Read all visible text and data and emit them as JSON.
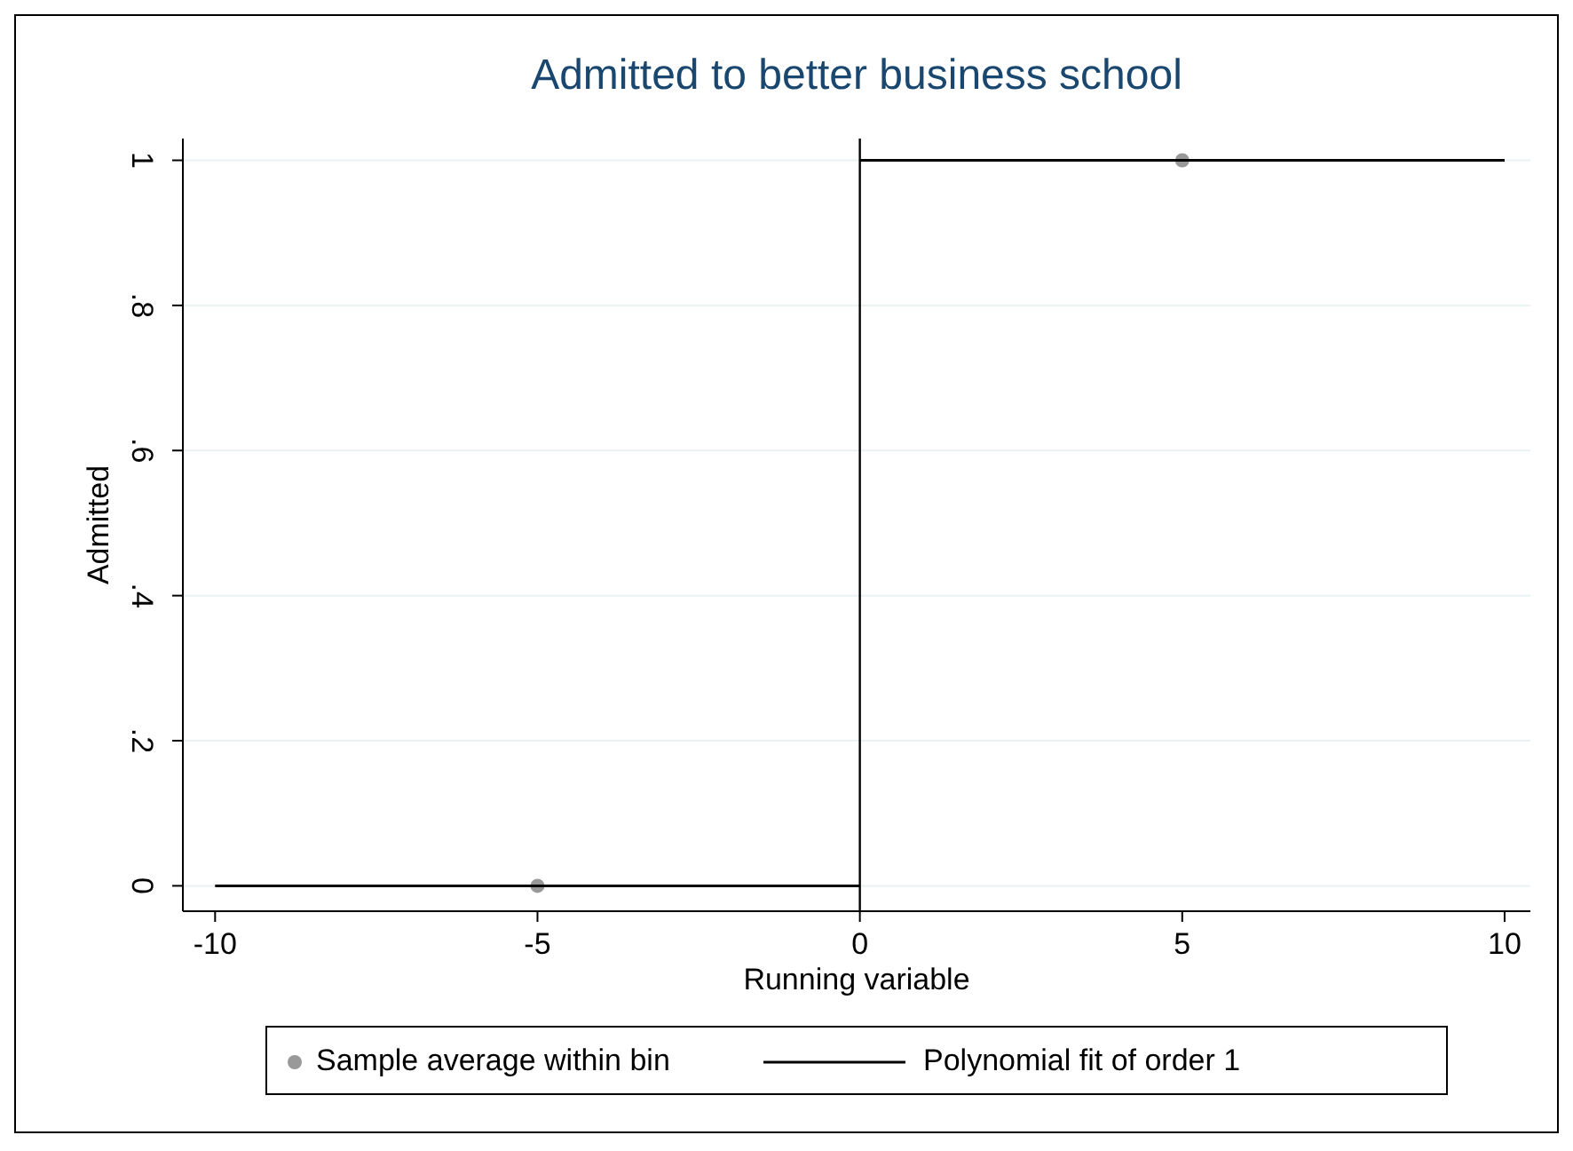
{
  "chart_data": {
    "type": "scatter",
    "title": "Admitted to better business school",
    "xlabel": "Running variable",
    "ylabel": "Admitted",
    "xlim": [
      -10.5,
      10.4
    ],
    "xticks": [
      -10,
      -5,
      0,
      5,
      10
    ],
    "ylim": [
      -0.035,
      1.03
    ],
    "yticks": [
      {
        "value": 0,
        "label": "0"
      },
      {
        "value": 0.2,
        "label": ".2"
      },
      {
        "value": 0.4,
        "label": ".4"
      },
      {
        "value": 0.6,
        "label": ".6"
      },
      {
        "value": 0.8,
        "label": ".8"
      },
      {
        "value": 1,
        "label": "1"
      }
    ],
    "grid": "y",
    "legend": "bottom",
    "series": [
      {
        "name": "Sample average within bin",
        "color": "#999999",
        "marker": "circle",
        "x": [
          -5,
          5
        ],
        "values": [
          0,
          1
        ]
      },
      {
        "name": "Polynomial fit of order 1",
        "type": "line",
        "color": "#000000",
        "x": [
          -10,
          0
        ],
        "values": [
          0,
          0
        ]
      },
      {
        "type": "line",
        "color": "#000000",
        "x": [
          0,
          10
        ],
        "values": [
          1,
          1
        ]
      }
    ],
    "ref_lines": [
      {
        "axis": "x",
        "value": 0,
        "label": null,
        "color": "#000000"
      }
    ]
  }
}
